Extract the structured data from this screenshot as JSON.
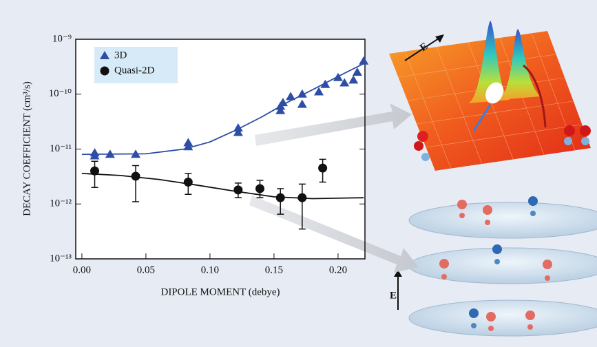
{
  "chart_data": {
    "type": "scatter",
    "y_label": "DECAY COEFFICIENT (cm³/s)",
    "x_label": "DIPOLE MOMENT (debye)",
    "y_log": true,
    "xlim": [
      -0.0048,
      0.221
    ],
    "ylim": [
      1e-13,
      1e-09
    ],
    "xticks": [
      {
        "value": 0,
        "label": "0.00"
      },
      0.05,
      {
        "value": 0.1,
        "label": "0.10"
      },
      0.15,
      {
        "value": 0.2,
        "label": "0.20"
      }
    ],
    "yticks": [
      {
        "value": 1e-13,
        "label": "10⁻¹³"
      },
      {
        "value": 1e-12,
        "label": "10⁻¹²"
      },
      {
        "value": 1e-11,
        "label": "10⁻¹¹"
      },
      {
        "value": 1e-10,
        "label": "10⁻¹⁰"
      },
      {
        "value": 1e-09,
        "label": "10⁻⁹"
      }
    ],
    "legend": "upper left",
    "series": [
      {
        "name": "3D",
        "color": "#2e4ea6",
        "marker": "triangle",
        "x": [
          0.01,
          0.01,
          0.022,
          0.042,
          0.083,
          0.083,
          0.122,
          0.122,
          0.155,
          0.155,
          0.157,
          0.163,
          0.172,
          0.172,
          0.185,
          0.19,
          0.2,
          0.205,
          0.212,
          0.215,
          0.22
        ],
        "values": [
          7.5e-12,
          8.5e-12,
          8e-12,
          8e-12,
          1.1e-11,
          1.3e-11,
          2e-11,
          2.4e-11,
          5e-11,
          6e-11,
          7e-11,
          9e-11,
          6.5e-11,
          1e-10,
          1.1e-10,
          1.5e-10,
          2e-10,
          1.6e-10,
          1.8e-10,
          2.5e-10,
          4e-10
        ]
      },
      {
        "name": "Quasi-2D",
        "color": "#111111",
        "marker": "circle",
        "x": [
          0.01,
          0.042,
          0.083,
          0.122,
          0.139,
          0.155,
          0.172,
          0.188
        ],
        "values": [
          4e-12,
          3.2e-12,
          2.5e-12,
          1.8e-12,
          1.9e-12,
          1.3e-12,
          1.3e-12,
          4.5e-12
        ],
        "lower": [
          2e-12,
          1.1e-12,
          1.5e-12,
          1.3e-12,
          1.3e-12,
          6.5e-13,
          3.5e-13,
          2.5e-12
        ],
        "upper": [
          6e-12,
          5e-12,
          3.6e-12,
          2.4e-12,
          2.7e-12,
          1.9e-12,
          2.3e-12,
          6.5e-12
        ]
      }
    ],
    "fits": [
      {
        "color": "#2e4ea6",
        "x": [
          0,
          0.05,
          0.08,
          0.1,
          0.12,
          0.14,
          0.16,
          0.18,
          0.2,
          0.22
        ],
        "values": [
          8e-12,
          8.2e-12,
          1e-11,
          1.35e-11,
          2.2e-11,
          3.8e-11,
          7e-11,
          1.2e-10,
          2.1e-10,
          3.6e-10
        ]
      },
      {
        "color": "#111111",
        "x": [
          0,
          0.03,
          0.06,
          0.09,
          0.12,
          0.15,
          0.18,
          0.22
        ],
        "values": [
          3.6e-12,
          3.3e-12,
          2.8e-12,
          2.2e-12,
          1.7e-12,
          1.35e-12,
          1.25e-12,
          1.3e-12
        ]
      }
    ],
    "annotations": [
      "E",
      "E"
    ]
  }
}
